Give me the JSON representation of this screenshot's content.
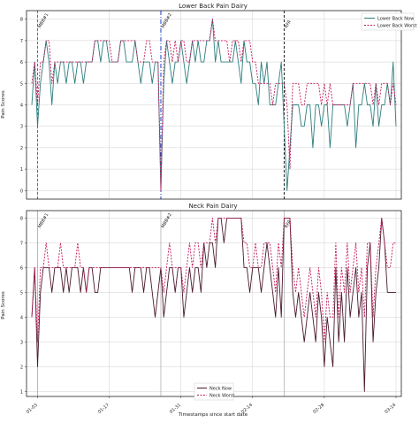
{
  "chart_data": [
    {
      "type": "line",
      "title": "Lower Back Pain Dairy",
      "ylabel": "Pain Scores",
      "xlabel": "",
      "ylim": [
        -0.4,
        8.4
      ],
      "yticks": [
        "0",
        "1",
        "2",
        "3",
        "4",
        "5",
        "6",
        "7",
        "8"
      ],
      "grid": true,
      "legend_position": "top-right",
      "series": [
        {
          "name": "Lower Back Now",
          "color": "#2e7d7d",
          "dash": "solid",
          "values": [
            4,
            6,
            3,
            5,
            6,
            7,
            6,
            4,
            6,
            5,
            6,
            6,
            5,
            6,
            6,
            5,
            6,
            6,
            5,
            6,
            6,
            6,
            7,
            7,
            6,
            7,
            7,
            6,
            6,
            6,
            6,
            7,
            7,
            6,
            6,
            6,
            7,
            6,
            5,
            6,
            6,
            6,
            5,
            6,
            6,
            0,
            5,
            7,
            6,
            5,
            6,
            6,
            7,
            6,
            5,
            6,
            7,
            6,
            7,
            6,
            6,
            7,
            7,
            8,
            6,
            7,
            6,
            6,
            6,
            6,
            6,
            7,
            6,
            5,
            7,
            6,
            6,
            5,
            5,
            4,
            6,
            5,
            6,
            4,
            4,
            4,
            5,
            6,
            3,
            0,
            2,
            4,
            4,
            4,
            3,
            3,
            4,
            4,
            2,
            4,
            4,
            3,
            4,
            4,
            2,
            4,
            4,
            4,
            4,
            4,
            3,
            4,
            5,
            2,
            4,
            4,
            5,
            4,
            4,
            3,
            5,
            3,
            4,
            4,
            5,
            4,
            6,
            3
          ]
        },
        {
          "name": "Lower Back Worst",
          "color": "#c2185b",
          "dash": "dashed",
          "values": [
            5,
            6,
            4,
            6,
            6,
            7,
            7,
            5,
            6,
            6,
            6,
            6,
            6,
            6,
            6,
            6,
            6,
            6,
            6,
            6,
            6,
            6,
            7,
            7,
            7,
            7,
            7,
            7,
            6,
            6,
            6,
            7,
            7,
            7,
            7,
            7,
            7,
            6,
            6,
            6,
            7,
            7,
            6,
            6,
            6,
            0,
            6,
            7,
            7,
            6,
            7,
            6,
            7,
            7,
            6,
            6,
            7,
            7,
            7,
            7,
            7,
            7,
            7,
            8,
            7,
            7,
            7,
            7,
            7,
            6,
            7,
            7,
            7,
            6,
            7,
            7,
            7,
            6,
            6,
            5,
            5,
            5,
            5,
            5,
            4,
            5,
            5,
            5,
            5,
            4,
            1,
            5,
            5,
            5,
            4,
            4,
            5,
            5,
            5,
            5,
            5,
            4,
            5,
            4,
            5,
            4,
            4,
            4,
            4,
            4,
            4,
            4,
            5,
            5,
            5,
            5,
            5,
            5,
            5,
            4,
            5,
            4,
            5,
            5,
            5,
            4,
            5,
            4
          ]
        }
      ],
      "vlines": [
        {
          "label": "MBB#1",
          "color": "#e53935",
          "dash": "dashed",
          "index": 2
        },
        {
          "label": "MBB#2",
          "color": "#1e3fd0",
          "dash": "dashdot",
          "index": 45
        },
        {
          "label": "RFA",
          "color": "#222222",
          "dash": "dashed",
          "index": 88
        }
      ]
    },
    {
      "type": "line",
      "title": "Neck Pain Dairy",
      "ylabel": "Pain Scores",
      "xlabel": "Timestamps since start date",
      "ylim": [
        0.8,
        8.3
      ],
      "yticks": [
        "1",
        "2",
        "3",
        "4",
        "5",
        "6",
        "7",
        "8"
      ],
      "xticks": [
        "01-03",
        "01-17",
        "01-31",
        "02-14",
        "02-28",
        "03-14"
      ],
      "grid": true,
      "legend_position": "bottom-center",
      "series": [
        {
          "name": "Neck Now",
          "color": "#4a1a2e",
          "dash": "solid",
          "values": [
            4,
            6,
            2,
            5,
            6,
            6,
            6,
            5,
            6,
            6,
            6,
            5,
            6,
            5,
            6,
            6,
            6,
            5,
            6,
            5,
            6,
            6,
            5,
            5,
            6,
            6,
            6,
            6,
            6,
            6,
            6,
            6,
            6,
            6,
            6,
            5,
            6,
            6,
            6,
            5,
            6,
            6,
            5,
            4,
            5,
            6,
            4,
            5,
            6,
            6,
            5,
            6,
            6,
            4,
            5,
            6,
            5,
            6,
            6,
            5,
            7,
            6,
            7,
            7,
            6,
            8,
            8,
            7,
            8,
            8,
            8,
            8,
            8,
            8,
            6,
            6,
            5,
            6,
            6,
            6,
            5,
            6,
            7,
            6,
            5,
            4,
            6,
            4,
            8,
            8,
            8,
            5,
            4,
            5,
            4,
            3,
            4,
            5,
            4,
            3,
            5,
            4,
            2,
            4,
            3,
            2,
            6,
            3,
            5,
            3,
            6,
            4,
            5,
            6,
            4,
            5,
            1,
            6,
            7,
            3,
            5,
            6,
            8,
            7,
            5,
            5,
            5,
            5
          ]
        },
        {
          "name": "Neck Worst",
          "color": "#c2185b",
          "dash": "dashed",
          "values": [
            4,
            6,
            3,
            6,
            6,
            7,
            6,
            6,
            6,
            6,
            7,
            6,
            6,
            6,
            6,
            6,
            7,
            6,
            6,
            5,
            6,
            6,
            6,
            6,
            6,
            6,
            6,
            6,
            6,
            6,
            6,
            6,
            6,
            6,
            6,
            6,
            6,
            6,
            6,
            6,
            6,
            6,
            6,
            6,
            6,
            6,
            5,
            6,
            7,
            6,
            6,
            6,
            6,
            5,
            6,
            7,
            6,
            7,
            7,
            6,
            7,
            7,
            7,
            8,
            7,
            8,
            8,
            8,
            8,
            8,
            8,
            8,
            8,
            8,
            7,
            7,
            6,
            6,
            7,
            6,
            6,
            7,
            7,
            7,
            6,
            5,
            7,
            6,
            8,
            8,
            8,
            6,
            5,
            6,
            5,
            4,
            5,
            6,
            5,
            4,
            6,
            5,
            3,
            5,
            4,
            4,
            7,
            4,
            6,
            5,
            7,
            5,
            6,
            7,
            5,
            6,
            4,
            7,
            7,
            4,
            6,
            7,
            8,
            7,
            6,
            6,
            7,
            7
          ]
        }
      ],
      "vlines": [
        {
          "label": "MBB#1",
          "color": "#999999",
          "dash": "none",
          "index": 2
        },
        {
          "label": "MBB#2",
          "color": "#999999",
          "dash": "none",
          "index": 45
        },
        {
          "label": "RFA",
          "color": "#999999",
          "dash": "none",
          "index": 88
        }
      ]
    }
  ]
}
